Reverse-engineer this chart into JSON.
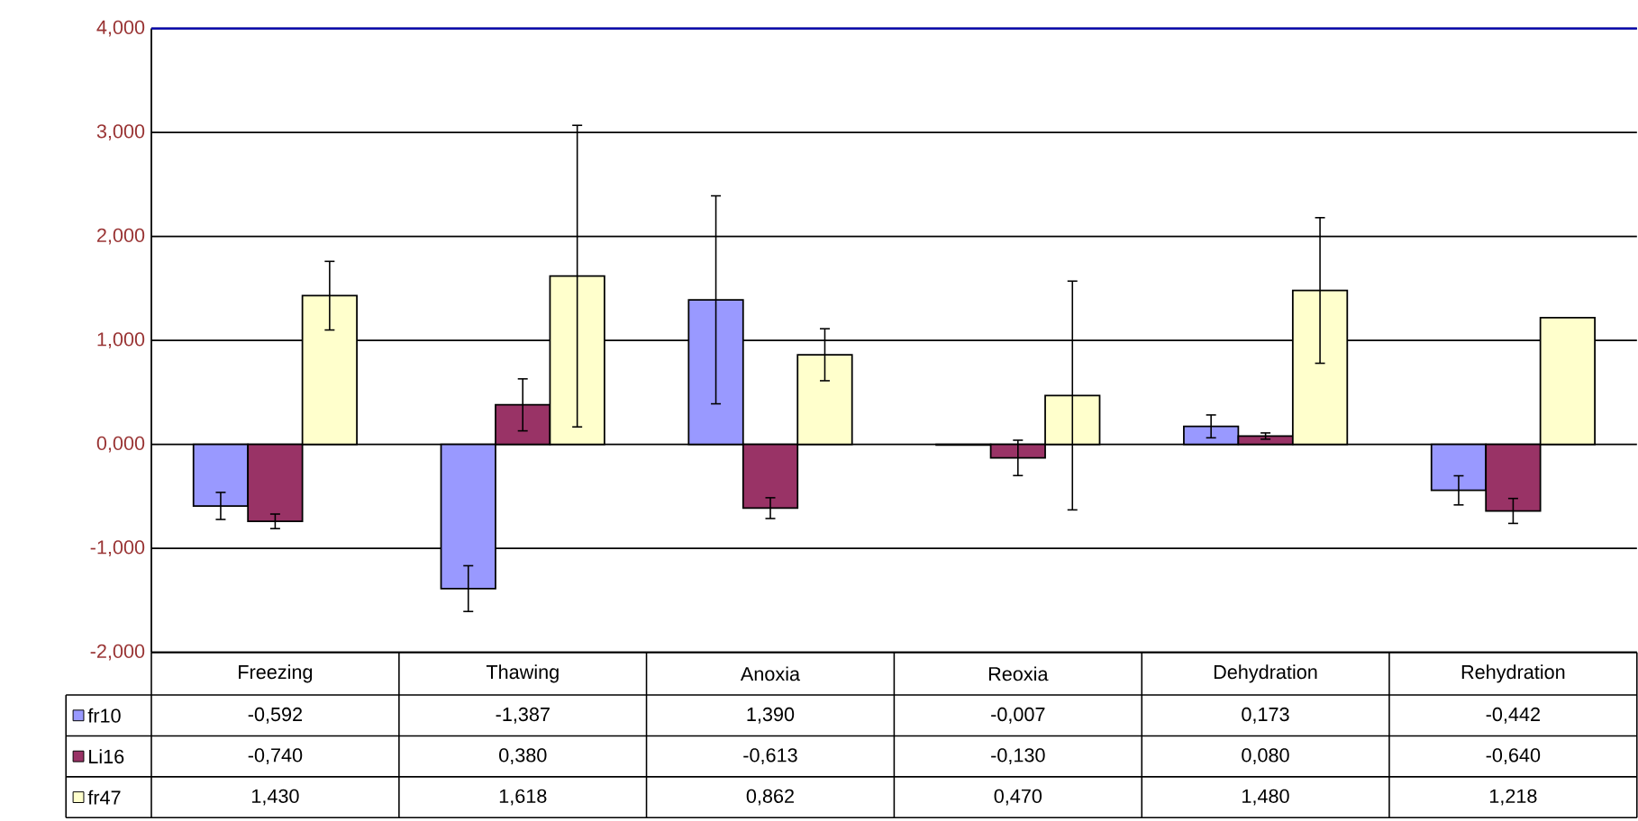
{
  "chart_data": {
    "type": "bar",
    "categories": [
      "Freezing",
      "Thawing",
      "Anoxia",
      "Reoxia",
      "Dehydration",
      "Rehydration"
    ],
    "series": [
      {
        "name": "fr10",
        "color": "#9999ff",
        "values": [
          -0.592,
          -1.387,
          1.39,
          -0.007,
          0.173,
          -0.442
        ],
        "value_labels": [
          "-0,592",
          "-1,387",
          "1,390",
          "-0,007",
          "0,173",
          "-0,442"
        ],
        "errors": [
          0.13,
          0.22,
          1.0,
          null,
          0.11,
          0.14
        ]
      },
      {
        "name": "Li16",
        "color": "#993366",
        "values": [
          -0.74,
          0.38,
          -0.613,
          -0.13,
          0.08,
          -0.64
        ],
        "value_labels": [
          "-0,740",
          "0,380",
          "-0,613",
          "-0,130",
          "0,080",
          "-0,640"
        ],
        "errors": [
          0.07,
          0.25,
          0.1,
          0.17,
          0.03,
          0.12
        ]
      },
      {
        "name": "fr47",
        "color": "#ffffcc",
        "values": [
          1.43,
          1.618,
          0.862,
          0.47,
          1.48,
          1.218
        ],
        "value_labels": [
          "1,430",
          "1,618",
          "0,862",
          "0,470",
          "1,480",
          "1,218"
        ],
        "errors": [
          0.33,
          1.45,
          0.25,
          1.1,
          0.7,
          null
        ]
      }
    ],
    "ylim": [
      -2,
      4
    ],
    "yticks": [
      {
        "value": -2,
        "label": "-2,000"
      },
      {
        "value": -1,
        "label": "-1,000"
      },
      {
        "value": 0,
        "label": "0,000"
      },
      {
        "value": 1,
        "label": "1,000"
      },
      {
        "value": 2,
        "label": "2,000"
      },
      {
        "value": 3,
        "label": "3,000"
      },
      {
        "value": 4,
        "label": "4,000"
      }
    ],
    "grid": "y",
    "legend": "bottom left"
  }
}
